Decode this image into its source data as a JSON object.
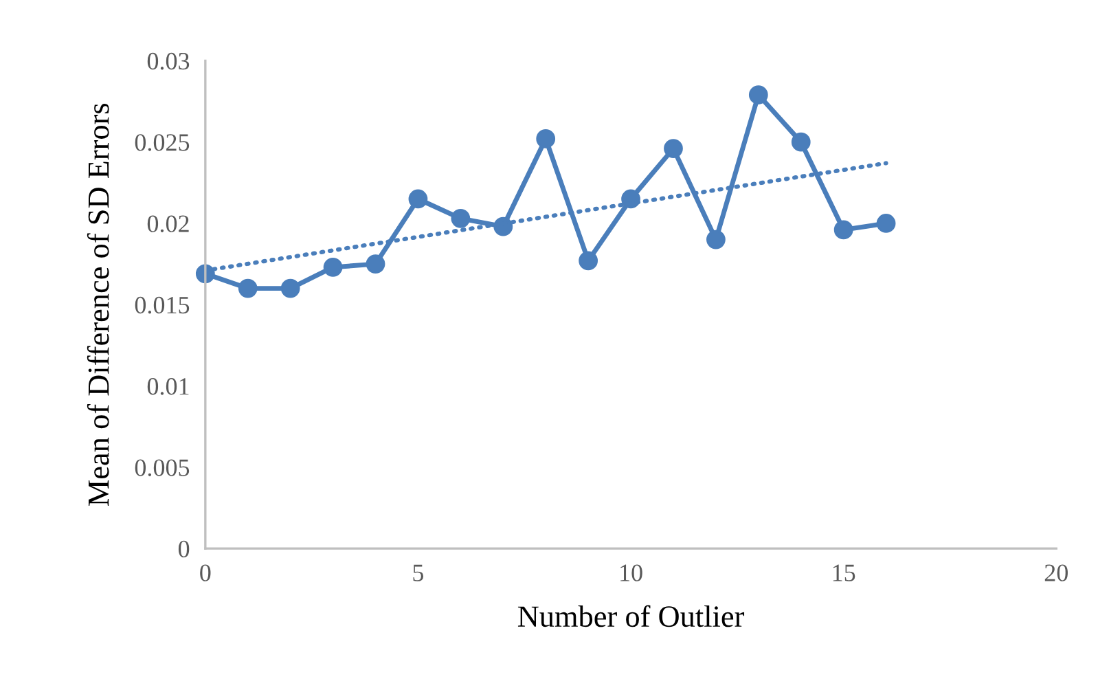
{
  "chart_data": {
    "type": "line",
    "xlabel": "Number of Outlier",
    "ylabel": "Mean of Difference of SD Errors",
    "xlim": [
      0,
      20
    ],
    "xticks": [
      0,
      5,
      10,
      15,
      20
    ],
    "ylim": [
      0,
      0.03
    ],
    "yticks": [
      0,
      0.005,
      0.01,
      0.015,
      0.02,
      0.025,
      0.03
    ],
    "grid": false,
    "marker": "circle",
    "line_style": "solid",
    "series": [
      {
        "color": "#4a7ebb",
        "x": [
          0,
          1,
          2,
          3,
          4,
          5,
          6,
          7,
          8,
          9,
          10,
          11,
          12,
          13,
          14,
          15,
          16
        ],
        "values": [
          0.0169,
          0.016,
          0.016,
          0.0173,
          0.0175,
          0.0215,
          0.0203,
          0.0198,
          0.0252,
          0.0177,
          0.0215,
          0.0246,
          0.019,
          0.0279,
          0.025,
          0.0196,
          0.02
        ]
      },
      {
        "color": "#4a7ebb",
        "x": [
          0,
          16
        ],
        "values": [
          0.0171,
          0.0237
        ],
        "marker": "none",
        "line_style": "dotted"
      }
    ]
  }
}
